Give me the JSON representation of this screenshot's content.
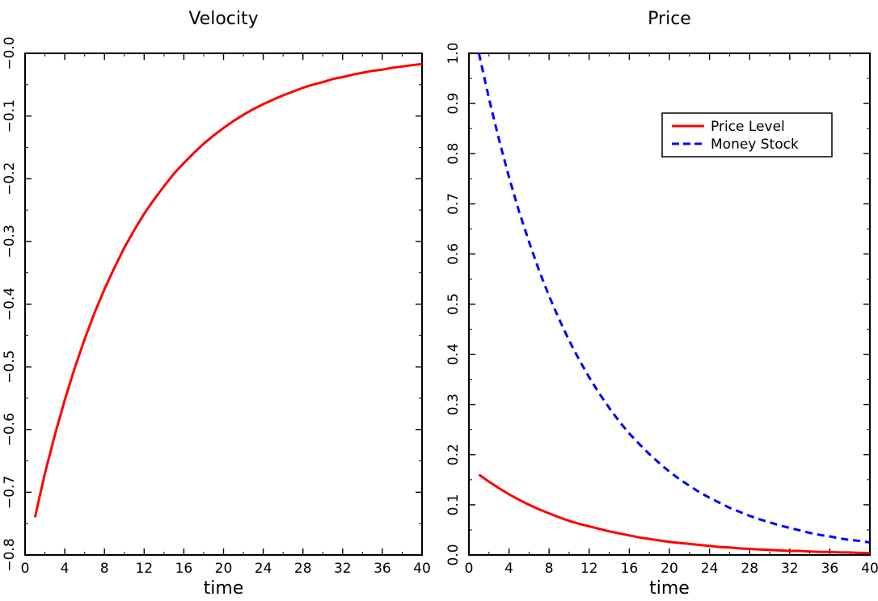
{
  "chart_data": [
    {
      "type": "line",
      "title": "Velocity",
      "xlabel": "time",
      "ylabel": "",
      "xlim": [
        0,
        40
      ],
      "ylim": [
        -0.8,
        0.0
      ],
      "x_ticks": [
        0,
        4,
        8,
        12,
        16,
        20,
        24,
        28,
        32,
        36,
        40
      ],
      "y_ticks": [
        -0.8,
        -0.7,
        -0.6,
        -0.5,
        -0.4,
        -0.3,
        -0.2,
        -0.1,
        0.0
      ],
      "y_tick_labels": [
        "−0.8",
        "−0.7",
        "−0.6",
        "−0.5",
        "−0.4",
        "−0.3",
        "−0.2",
        "−0.1",
        "−0.0"
      ],
      "grid": false,
      "series": [
        {
          "color": "#ff0000",
          "style": "solid",
          "x": [
            1,
            2,
            3,
            4,
            5,
            6,
            7,
            8,
            9,
            10,
            11,
            12,
            13,
            14,
            15,
            16,
            17,
            18,
            19,
            20,
            21,
            22,
            23,
            24,
            25,
            26,
            27,
            28,
            29,
            30,
            31,
            32,
            33,
            34,
            35,
            36,
            37,
            38,
            39,
            40
          ],
          "values": [
            -0.74,
            -0.67,
            -0.609,
            -0.553,
            -0.502,
            -0.456,
            -0.414,
            -0.376,
            -0.342,
            -0.31,
            -0.282,
            -0.256,
            -0.233,
            -0.212,
            -0.192,
            -0.175,
            -0.159,
            -0.144,
            -0.131,
            -0.119,
            -0.108,
            -0.098,
            -0.089,
            -0.081,
            -0.074,
            -0.067,
            -0.061,
            -0.055,
            -0.05,
            -0.046,
            -0.041,
            -0.038,
            -0.034,
            -0.031,
            -0.028,
            -0.026,
            -0.023,
            -0.021,
            -0.019,
            -0.017
          ]
        }
      ]
    },
    {
      "type": "line",
      "title": "Price",
      "xlabel": "time",
      "ylabel": "",
      "xlim": [
        0,
        40
      ],
      "ylim": [
        0.0,
        1.0
      ],
      "x_ticks": [
        0,
        4,
        8,
        12,
        16,
        20,
        24,
        28,
        32,
        36,
        40
      ],
      "y_ticks": [
        0.0,
        0.1,
        0.2,
        0.3,
        0.4,
        0.5,
        0.6,
        0.7,
        0.8,
        0.9,
        1.0
      ],
      "y_tick_labels": [
        "0.0",
        "0.1",
        "0.2",
        "0.3",
        "0.4",
        "0.5",
        "0.6",
        "0.7",
        "0.8",
        "0.9",
        "1.0"
      ],
      "grid": false,
      "legend_position": "top-right",
      "series": [
        {
          "name": "Price Level",
          "color": "#ff0000",
          "style": "solid",
          "x": [
            1,
            2,
            3,
            4,
            5,
            6,
            7,
            8,
            9,
            10,
            11,
            12,
            13,
            14,
            15,
            16,
            17,
            18,
            19,
            20,
            21,
            22,
            23,
            24,
            25,
            26,
            27,
            28,
            29,
            30,
            31,
            32,
            33,
            34,
            35,
            36,
            37,
            38,
            39,
            40
          ],
          "values": [
            0.16,
            0.146,
            0.133,
            0.121,
            0.11,
            0.1,
            0.091,
            0.083,
            0.075,
            0.068,
            0.062,
            0.057,
            0.052,
            0.047,
            0.043,
            0.039,
            0.035,
            0.032,
            0.029,
            0.026,
            0.024,
            0.022,
            0.02,
            0.018,
            0.016,
            0.015,
            0.013,
            0.012,
            0.011,
            0.01,
            0.009,
            0.008,
            0.008,
            0.007,
            0.006,
            0.006,
            0.005,
            0.005,
            0.004,
            0.004
          ]
        },
        {
          "name": "Money Stock",
          "color": "#0000ff",
          "style": "dashed",
          "x": [
            1,
            2,
            3,
            4,
            5,
            6,
            7,
            8,
            9,
            10,
            11,
            12,
            13,
            14,
            15,
            16,
            17,
            18,
            19,
            20,
            21,
            22,
            23,
            24,
            25,
            26,
            27,
            28,
            29,
            30,
            31,
            32,
            33,
            34,
            35,
            36,
            37,
            38,
            39,
            40
          ],
          "values": [
            1.0,
            0.91,
            0.828,
            0.753,
            0.685,
            0.624,
            0.567,
            0.516,
            0.47,
            0.427,
            0.389,
            0.354,
            0.322,
            0.293,
            0.266,
            0.242,
            0.221,
            0.201,
            0.183,
            0.166,
            0.151,
            0.138,
            0.125,
            0.114,
            0.104,
            0.094,
            0.086,
            0.078,
            0.071,
            0.065,
            0.059,
            0.054,
            0.049,
            0.044,
            0.04,
            0.037,
            0.033,
            0.03,
            0.028,
            0.025
          ]
        }
      ]
    }
  ]
}
